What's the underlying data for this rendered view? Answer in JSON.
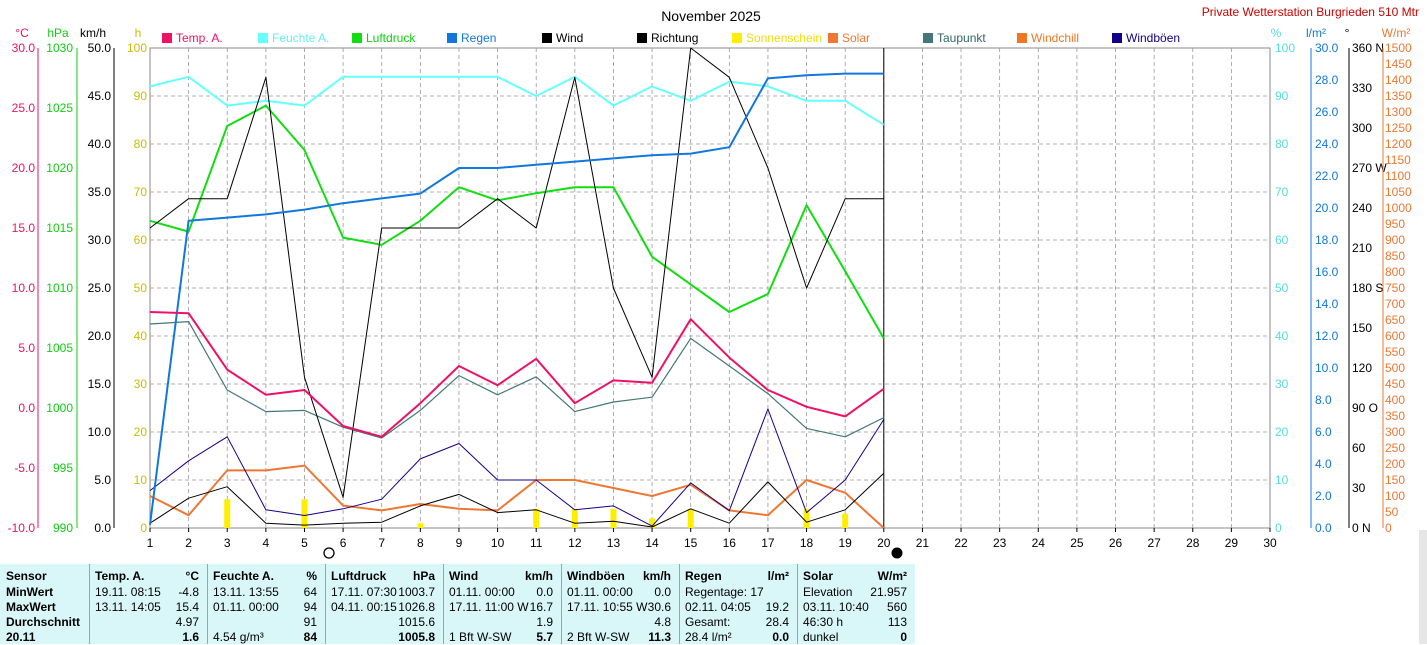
{
  "title": "November 2025",
  "station": "Private Wetterstation Burgrieden 510 Mtr",
  "colors": {
    "temp": "#ee1166",
    "humidity": "#66ffff",
    "pressure": "#11dd11",
    "rain": "#1177dd",
    "wind": "#000000",
    "direction": "#000000",
    "sunshine": "#ffee00",
    "solar": "#ee7733",
    "dewpoint": "#447777",
    "windchill": "#ee7722",
    "gust": "#110088"
  },
  "chart_data": {
    "type": "line",
    "x": [
      1,
      2,
      3,
      4,
      5,
      6,
      7,
      8,
      9,
      10,
      11,
      12,
      13,
      14,
      15,
      16,
      17,
      18,
      19,
      20
    ],
    "xlim": [
      1,
      30
    ],
    "xticks": [
      1,
      2,
      3,
      4,
      5,
      6,
      7,
      8,
      9,
      10,
      11,
      12,
      13,
      14,
      15,
      16,
      17,
      18,
      19,
      20,
      21,
      22,
      23,
      24,
      25,
      26,
      27,
      28,
      29,
      30
    ],
    "legend": [
      "Temp. A.",
      "Feuchte A.",
      "Luftdruck",
      "Regen",
      "Wind",
      "Richtung",
      "Sonnenschein",
      "Solar",
      "Taupunkt",
      "Windchill",
      "Windböen"
    ],
    "axes": {
      "temp": {
        "unit": "°C",
        "ylim": [
          -10,
          30
        ],
        "ticks": [
          "30.0",
          "25.0",
          "20.0",
          "15.0",
          "10.0",
          "5.0",
          "0.0",
          "-5.0",
          "-10.0"
        ]
      },
      "pressure": {
        "unit": "hPa",
        "ylim": [
          990,
          1030
        ],
        "ticks": [
          "1030",
          "1025",
          "1020",
          "1015",
          "1010",
          "1005",
          "1000",
          "995",
          "990"
        ]
      },
      "wind": {
        "unit": "km/h",
        "ylim": [
          0,
          50
        ],
        "ticks": [
          "50.0",
          "45.0",
          "40.0",
          "35.0",
          "30.0",
          "25.0",
          "20.0",
          "15.0",
          "10.0",
          "5.0",
          "0.0"
        ]
      },
      "sun": {
        "unit": "h",
        "ylim": [
          0,
          100
        ],
        "ticks": [
          "100",
          "90",
          "80",
          "70",
          "60",
          "50",
          "40",
          "30",
          "20",
          "10",
          "0"
        ]
      },
      "humidity": {
        "unit": "%",
        "ylim": [
          0,
          100
        ],
        "ticks": [
          "100",
          "90",
          "80",
          "70",
          "60",
          "50",
          "40",
          "30",
          "20",
          "10",
          "0"
        ]
      },
      "rain": {
        "unit": "l/m²",
        "ylim": [
          0,
          30
        ],
        "ticks": [
          "30.0",
          "28.0",
          "26.0",
          "24.0",
          "22.0",
          "20.0",
          "18.0",
          "16.0",
          "14.0",
          "12.0",
          "10.0",
          "8.0",
          "6.0",
          "4.0",
          "2.0",
          "0.0"
        ]
      },
      "direction": {
        "unit": "°",
        "ylim": [
          0,
          360
        ],
        "ticks": [
          "360 N",
          "330",
          "300",
          "270 W",
          "240",
          "210",
          "180 S",
          "150",
          "120",
          "90 O",
          "60",
          "30",
          "0 N"
        ]
      },
      "solar": {
        "unit": "W/m²",
        "ylim": [
          0,
          1500
        ],
        "ticks": [
          "1500",
          "1450",
          "1400",
          "1350",
          "1300",
          "1250",
          "1200",
          "1150",
          "1100",
          "1050",
          "1000",
          "950",
          "900",
          "850",
          "800",
          "750",
          "700",
          "650",
          "600",
          "550",
          "500",
          "450",
          "400",
          "350",
          "300",
          "250",
          "200",
          "150",
          "100",
          "50",
          "0"
        ]
      }
    },
    "series": [
      {
        "name": "Temp. A.",
        "axis": "temp",
        "values": [
          8.0,
          7.9,
          3.2,
          1.1,
          1.5,
          -1.5,
          -2.4,
          0.4,
          3.5,
          1.9,
          4.1,
          0.4,
          2.3,
          2.1,
          7.4,
          4.2,
          1.5,
          0.1,
          -0.7,
          1.6
        ]
      },
      {
        "name": "Feuchte A.",
        "axis": "humidity",
        "values": [
          92,
          94,
          88,
          89,
          88,
          94,
          94,
          94,
          94,
          94,
          90,
          94,
          88,
          92,
          89,
          93,
          92,
          89,
          89,
          84
        ]
      },
      {
        "name": "Luftdruck",
        "axis": "pressure",
        "values": [
          1015.6,
          1014.7,
          1023.5,
          1025.2,
          1021.5,
          1014.2,
          1013.6,
          1015.6,
          1018.4,
          1017.3,
          1017.9,
          1018.4,
          1018.4,
          1012.6,
          1010.3,
          1008.0,
          1009.5,
          1016.9,
          1011.4,
          1005.8
        ]
      },
      {
        "name": "Regen",
        "axis": "rain",
        "values": [
          0.2,
          19.2,
          19.4,
          19.6,
          19.9,
          20.3,
          20.6,
          20.9,
          22.5,
          22.5,
          22.7,
          22.9,
          23.1,
          23.3,
          23.4,
          23.8,
          28.1,
          28.3,
          28.4,
          28.4
        ]
      },
      {
        "name": "Wind",
        "axis": "wind",
        "values": [
          0.5,
          3.1,
          4.3,
          0.5,
          0.3,
          0.5,
          0.6,
          2.3,
          3.5,
          1.6,
          1.9,
          0.5,
          0.7,
          0.1,
          2.0,
          0.5,
          4.8,
          0.6,
          1.9,
          5.7
        ]
      },
      {
        "name": "Windböen",
        "axis": "wind",
        "values": [
          3.9,
          7.0,
          9.5,
          1.9,
          1.3,
          2.0,
          3.0,
          7.2,
          8.8,
          5.0,
          5.0,
          1.9,
          2.3,
          0.2,
          4.7,
          1.8,
          12.4,
          1.6,
          5.0,
          11.3
        ]
      },
      {
        "name": "Richtung",
        "axis": "direction",
        "values": [
          225,
          247,
          247,
          338,
          113,
          23,
          225,
          225,
          225,
          247,
          225,
          338,
          180,
          113,
          360,
          338,
          270,
          180,
          247,
          247
        ]
      },
      {
        "name": "Taupunkt",
        "axis": "temp",
        "values": [
          7.0,
          7.2,
          1.5,
          -0.3,
          -0.2,
          -1.6,
          -2.5,
          -0.2,
          2.7,
          1.1,
          2.6,
          -0.3,
          0.5,
          0.9,
          5.8,
          3.5,
          1.2,
          -1.7,
          -2.4,
          -0.8
        ]
      },
      {
        "name": "Solar",
        "axis": "solar",
        "values": [
          100,
          40,
          180,
          180,
          195,
          70,
          55,
          75,
          60,
          55,
          150,
          150,
          125,
          100,
          135,
          55,
          40,
          150,
          110,
          0
        ]
      },
      {
        "name": "Sonnenschein",
        "axis": "sun",
        "values": [
          0,
          0,
          6,
          0,
          6,
          0,
          0,
          1,
          0,
          0,
          4,
          4,
          4,
          2,
          4,
          0,
          0,
          4,
          3,
          0
        ]
      }
    ]
  },
  "table": {
    "headers": [
      {
        "name": "Sensor",
        "unit": ""
      },
      {
        "name": "Temp. A.",
        "unit": "°C"
      },
      {
        "name": "Feuchte A.",
        "unit": "%"
      },
      {
        "name": "Luftdruck",
        "unit": "hPa"
      },
      {
        "name": "Wind",
        "unit": "km/h"
      },
      {
        "name": "Windböen",
        "unit": "km/h"
      },
      {
        "name": "Regen",
        "unit": "l/m²"
      },
      {
        "name": "Solar",
        "unit": "W/m²"
      }
    ],
    "row_labels": [
      "MinWert",
      "MaxWert",
      "Durchschnitt",
      "20.11"
    ],
    "cols": [
      [
        [
          "19.11.  08:15",
          "-4.8"
        ],
        [
          "13.11.  14:05",
          "15.4"
        ],
        [
          "",
          "4.97"
        ],
        [
          "",
          "1.6"
        ]
      ],
      [
        [
          "13.11.  13:55",
          "64"
        ],
        [
          "01.11.  00:00",
          "94"
        ],
        [
          "",
          "91"
        ],
        [
          "4.54 g/m³",
          "84"
        ]
      ],
      [
        [
          "17.11.  07:30",
          "1003.7"
        ],
        [
          "04.11.  00:15",
          "1026.8"
        ],
        [
          "",
          "1015.6"
        ],
        [
          "",
          "1005.8"
        ]
      ],
      [
        [
          "01.11.  00:00",
          "0.0"
        ],
        [
          "17.11.  11:00  W",
          "16.7"
        ],
        [
          "",
          "1.9"
        ],
        [
          "1 Bft W-SW",
          "5.7"
        ]
      ],
      [
        [
          "01.11.  00:00",
          "0.0"
        ],
        [
          "17.11.  10:55  W",
          "30.6"
        ],
        [
          "",
          "4.8"
        ],
        [
          "2 Bft W-SW",
          "11.3"
        ]
      ],
      [
        [
          "Regentage: 17",
          ""
        ],
        [
          "02.11.  04:05",
          "19.2"
        ],
        [
          "Gesamt:",
          "28.4"
        ],
        [
          "28.4 l/m²",
          "0.0"
        ]
      ],
      [
        [
          "Elevation",
          "21.957"
        ],
        [
          "03.11.  10:40",
          "560"
        ],
        [
          "46:30 h",
          "113"
        ],
        [
          "dunkel",
          "0"
        ]
      ]
    ]
  }
}
